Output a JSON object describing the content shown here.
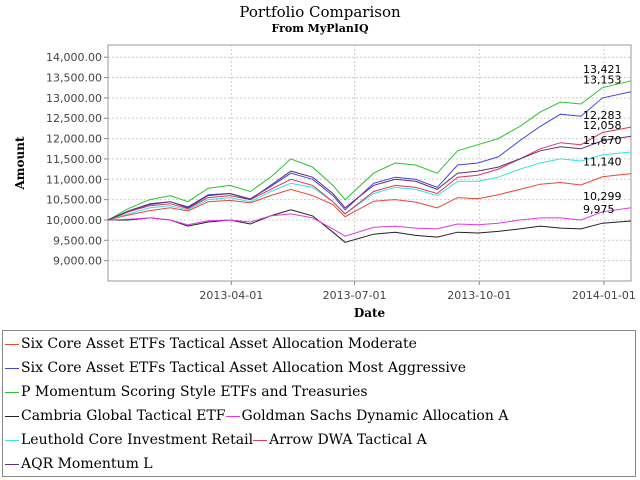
{
  "chart_data": {
    "type": "line",
    "title": "Portfolio Comparison",
    "subtitle": "From MyPlanIQ",
    "xlabel": "Date",
    "ylabel": "Amount",
    "x_range": [
      "2012-12-31",
      "2014-01-21"
    ],
    "ylim": [
      8500,
      14300
    ],
    "y_ticks": [
      9000,
      9500,
      10000,
      10500,
      11000,
      11500,
      12000,
      12500,
      13000,
      13500,
      14000
    ],
    "y_tick_labels": [
      "9,000.00",
      "9,500.00",
      "10,000.00",
      "10,500.00",
      "11,000.00",
      "11,500.00",
      "12,000.00",
      "12,500.00",
      "13,000.00",
      "13,500.00",
      "14,000.00"
    ],
    "x_ticks": [
      "2013-04-01",
      "2013-07-01",
      "2013-10-01",
      "2014-01-01"
    ],
    "grid": true,
    "legend_position": "bottom",
    "series": [
      {
        "name": "Six Core Asset ETFs Tactical Asset Allocation Moderate",
        "color": "#e8473a",
        "end_label": "11,140",
        "points": [
          [
            "2012-12-31",
            10000
          ],
          [
            "2013-01-15",
            10120
          ],
          [
            "2013-01-31",
            10230
          ],
          [
            "2013-02-15",
            10300
          ],
          [
            "2013-02-28",
            10220
          ],
          [
            "2013-03-15",
            10450
          ],
          [
            "2013-03-31",
            10480
          ],
          [
            "2013-04-15",
            10420
          ],
          [
            "2013-04-30",
            10600
          ],
          [
            "2013-05-15",
            10750
          ],
          [
            "2013-05-31",
            10600
          ],
          [
            "2013-06-15",
            10380
          ],
          [
            "2013-06-24",
            10080
          ],
          [
            "2013-07-15",
            10460
          ],
          [
            "2013-07-31",
            10500
          ],
          [
            "2013-08-15",
            10440
          ],
          [
            "2013-08-31",
            10300
          ],
          [
            "2013-09-15",
            10550
          ],
          [
            "2013-09-30",
            10520
          ],
          [
            "2013-10-15",
            10620
          ],
          [
            "2013-10-31",
            10750
          ],
          [
            "2013-11-15",
            10880
          ],
          [
            "2013-11-30",
            10920
          ],
          [
            "2013-12-15",
            10860
          ],
          [
            "2013-12-31",
            11060
          ],
          [
            "2014-01-21",
            11140
          ]
        ]
      },
      {
        "name": "Six Core Asset ETFs Tactical Asset Allocation Most Aggressive",
        "color": "#4545d8",
        "end_label": "13,153",
        "points": [
          [
            "2012-12-31",
            10000
          ],
          [
            "2013-01-15",
            10200
          ],
          [
            "2013-01-31",
            10380
          ],
          [
            "2013-02-15",
            10450
          ],
          [
            "2013-02-28",
            10320
          ],
          [
            "2013-03-15",
            10620
          ],
          [
            "2013-03-31",
            10650
          ],
          [
            "2013-04-15",
            10520
          ],
          [
            "2013-04-30",
            10820
          ],
          [
            "2013-05-15",
            11150
          ],
          [
            "2013-05-31",
            11000
          ],
          [
            "2013-06-15",
            10600
          ],
          [
            "2013-06-24",
            10250
          ],
          [
            "2013-07-15",
            10900
          ],
          [
            "2013-07-31",
            11050
          ],
          [
            "2013-08-15",
            11000
          ],
          [
            "2013-08-31",
            10800
          ],
          [
            "2013-09-15",
            11350
          ],
          [
            "2013-09-30",
            11400
          ],
          [
            "2013-10-15",
            11550
          ],
          [
            "2013-10-31",
            11950
          ],
          [
            "2013-11-15",
            12300
          ],
          [
            "2013-11-30",
            12600
          ],
          [
            "2013-12-15",
            12550
          ],
          [
            "2013-12-31",
            13000
          ],
          [
            "2014-01-21",
            13153
          ]
        ]
      },
      {
        "name": "P Momentum Scoring Style ETFs and Treasuries",
        "color": "#2ec22e",
        "end_label": "13,421",
        "points": [
          [
            "2012-12-31",
            10000
          ],
          [
            "2013-01-15",
            10280
          ],
          [
            "2013-01-31",
            10500
          ],
          [
            "2013-02-15",
            10600
          ],
          [
            "2013-02-28",
            10450
          ],
          [
            "2013-03-15",
            10780
          ],
          [
            "2013-03-31",
            10850
          ],
          [
            "2013-04-15",
            10700
          ],
          [
            "2013-04-30",
            11050
          ],
          [
            "2013-05-15",
            11500
          ],
          [
            "2013-05-31",
            11300
          ],
          [
            "2013-06-15",
            10850
          ],
          [
            "2013-06-24",
            10500
          ],
          [
            "2013-07-15",
            11150
          ],
          [
            "2013-07-31",
            11400
          ],
          [
            "2013-08-15",
            11350
          ],
          [
            "2013-08-31",
            11150
          ],
          [
            "2013-09-15",
            11700
          ],
          [
            "2013-09-30",
            11850
          ],
          [
            "2013-10-15",
            12000
          ],
          [
            "2013-10-31",
            12300
          ],
          [
            "2013-11-15",
            12650
          ],
          [
            "2013-11-30",
            12900
          ],
          [
            "2013-12-15",
            12850
          ],
          [
            "2013-12-31",
            13250
          ],
          [
            "2014-01-21",
            13421
          ]
        ]
      },
      {
        "name": "Cambria Global Tactical ETF",
        "color": "#222222",
        "end_label": "9,975",
        "points": [
          [
            "2012-12-31",
            10000
          ],
          [
            "2013-01-15",
            10000
          ],
          [
            "2013-01-31",
            10050
          ],
          [
            "2013-02-15",
            10000
          ],
          [
            "2013-02-28",
            9850
          ],
          [
            "2013-03-15",
            9950
          ],
          [
            "2013-03-31",
            10000
          ],
          [
            "2013-04-15",
            9900
          ],
          [
            "2013-04-30",
            10100
          ],
          [
            "2013-05-15",
            10250
          ],
          [
            "2013-05-31",
            10100
          ],
          [
            "2013-06-15",
            9700
          ],
          [
            "2013-06-24",
            9450
          ],
          [
            "2013-07-15",
            9650
          ],
          [
            "2013-07-31",
            9700
          ],
          [
            "2013-08-15",
            9620
          ],
          [
            "2013-08-31",
            9580
          ],
          [
            "2013-09-15",
            9700
          ],
          [
            "2013-09-30",
            9680
          ],
          [
            "2013-10-15",
            9720
          ],
          [
            "2013-10-31",
            9780
          ],
          [
            "2013-11-15",
            9850
          ],
          [
            "2013-11-30",
            9800
          ],
          [
            "2013-12-15",
            9780
          ],
          [
            "2013-12-31",
            9920
          ],
          [
            "2014-01-21",
            9975
          ]
        ]
      },
      {
        "name": "Goldman Sachs Dynamic Allocation A",
        "color": "#e238e2",
        "end_label": "10,299",
        "points": [
          [
            "2012-12-31",
            10000
          ],
          [
            "2013-01-15",
            10020
          ],
          [
            "2013-01-31",
            10050
          ],
          [
            "2013-02-15",
            10000
          ],
          [
            "2013-02-28",
            9880
          ],
          [
            "2013-03-15",
            9980
          ],
          [
            "2013-03-31",
            10000
          ],
          [
            "2013-04-15",
            9950
          ],
          [
            "2013-04-30",
            10100
          ],
          [
            "2013-05-15",
            10150
          ],
          [
            "2013-05-31",
            10050
          ],
          [
            "2013-06-15",
            9780
          ],
          [
            "2013-06-24",
            9600
          ],
          [
            "2013-07-15",
            9820
          ],
          [
            "2013-07-31",
            9850
          ],
          [
            "2013-08-15",
            9800
          ],
          [
            "2013-08-31",
            9780
          ],
          [
            "2013-09-15",
            9900
          ],
          [
            "2013-09-30",
            9880
          ],
          [
            "2013-10-15",
            9920
          ],
          [
            "2013-10-31",
            10000
          ],
          [
            "2013-11-15",
            10050
          ],
          [
            "2013-11-30",
            10050
          ],
          [
            "2013-12-15",
            10000
          ],
          [
            "2013-12-31",
            10200
          ],
          [
            "2014-01-21",
            10299
          ]
        ]
      },
      {
        "name": "Leuthold Core Investment Retail",
        "color": "#38e2e2",
        "end_label": "11,670",
        "points": [
          [
            "2012-12-31",
            10000
          ],
          [
            "2013-01-15",
            10150
          ],
          [
            "2013-01-31",
            10300
          ],
          [
            "2013-02-15",
            10350
          ],
          [
            "2013-02-28",
            10250
          ],
          [
            "2013-03-15",
            10500
          ],
          [
            "2013-03-31",
            10550
          ],
          [
            "2013-04-15",
            10450
          ],
          [
            "2013-04-30",
            10700
          ],
          [
            "2013-05-15",
            10900
          ],
          [
            "2013-05-31",
            10800
          ],
          [
            "2013-06-15",
            10450
          ],
          [
            "2013-06-24",
            10150
          ],
          [
            "2013-07-15",
            10650
          ],
          [
            "2013-07-31",
            10800
          ],
          [
            "2013-08-15",
            10750
          ],
          [
            "2013-08-31",
            10600
          ],
          [
            "2013-09-15",
            10950
          ],
          [
            "2013-09-30",
            10950
          ],
          [
            "2013-10-15",
            11050
          ],
          [
            "2013-10-31",
            11250
          ],
          [
            "2013-11-15",
            11400
          ],
          [
            "2013-11-30",
            11500
          ],
          [
            "2013-12-15",
            11450
          ],
          [
            "2013-12-31",
            11600
          ],
          [
            "2014-01-21",
            11670
          ]
        ]
      },
      {
        "name": "Arrow DWA Tactical A",
        "color": "#d8385a",
        "end_label": "12,283",
        "points": [
          [
            "2012-12-31",
            10000
          ],
          [
            "2013-01-15",
            10200
          ],
          [
            "2013-01-31",
            10350
          ],
          [
            "2013-02-15",
            10400
          ],
          [
            "2013-02-28",
            10280
          ],
          [
            "2013-03-15",
            10550
          ],
          [
            "2013-03-31",
            10600
          ],
          [
            "2013-04-15",
            10500
          ],
          [
            "2013-04-30",
            10750
          ],
          [
            "2013-05-15",
            11000
          ],
          [
            "2013-05-31",
            10850
          ],
          [
            "2013-06-15",
            10450
          ],
          [
            "2013-06-24",
            10150
          ],
          [
            "2013-07-15",
            10700
          ],
          [
            "2013-07-31",
            10850
          ],
          [
            "2013-08-15",
            10800
          ],
          [
            "2013-08-31",
            10650
          ],
          [
            "2013-09-15",
            11050
          ],
          [
            "2013-09-30",
            11100
          ],
          [
            "2013-10-15",
            11250
          ],
          [
            "2013-10-31",
            11500
          ],
          [
            "2013-11-15",
            11750
          ],
          [
            "2013-11-30",
            11900
          ],
          [
            "2013-12-15",
            11850
          ],
          [
            "2013-12-31",
            12150
          ],
          [
            "2014-01-21",
            12283
          ]
        ]
      },
      {
        "name": "AQR Momentum L",
        "color": "#5c3070",
        "end_label": "12,058",
        "points": [
          [
            "2012-12-31",
            10000
          ],
          [
            "2013-01-15",
            10220
          ],
          [
            "2013-01-31",
            10400
          ],
          [
            "2013-02-15",
            10450
          ],
          [
            "2013-02-28",
            10300
          ],
          [
            "2013-03-15",
            10600
          ],
          [
            "2013-03-31",
            10650
          ],
          [
            "2013-04-15",
            10500
          ],
          [
            "2013-04-30",
            10850
          ],
          [
            "2013-05-15",
            11200
          ],
          [
            "2013-05-31",
            11050
          ],
          [
            "2013-06-15",
            10650
          ],
          [
            "2013-06-24",
            10300
          ],
          [
            "2013-07-15",
            10850
          ],
          [
            "2013-07-31",
            11000
          ],
          [
            "2013-08-15",
            10950
          ],
          [
            "2013-08-31",
            10750
          ],
          [
            "2013-09-15",
            11150
          ],
          [
            "2013-09-30",
            11200
          ],
          [
            "2013-10-15",
            11300
          ],
          [
            "2013-10-31",
            11500
          ],
          [
            "2013-11-15",
            11700
          ],
          [
            "2013-11-30",
            11800
          ],
          [
            "2013-12-15",
            11750
          ],
          [
            "2013-12-31",
            11950
          ],
          [
            "2014-01-21",
            12058
          ]
        ]
      }
    ],
    "legend_rows": [
      [
        0
      ],
      [
        1
      ],
      [
        2
      ],
      [
        3,
        4
      ],
      [
        5,
        6
      ],
      [
        7
      ]
    ]
  }
}
